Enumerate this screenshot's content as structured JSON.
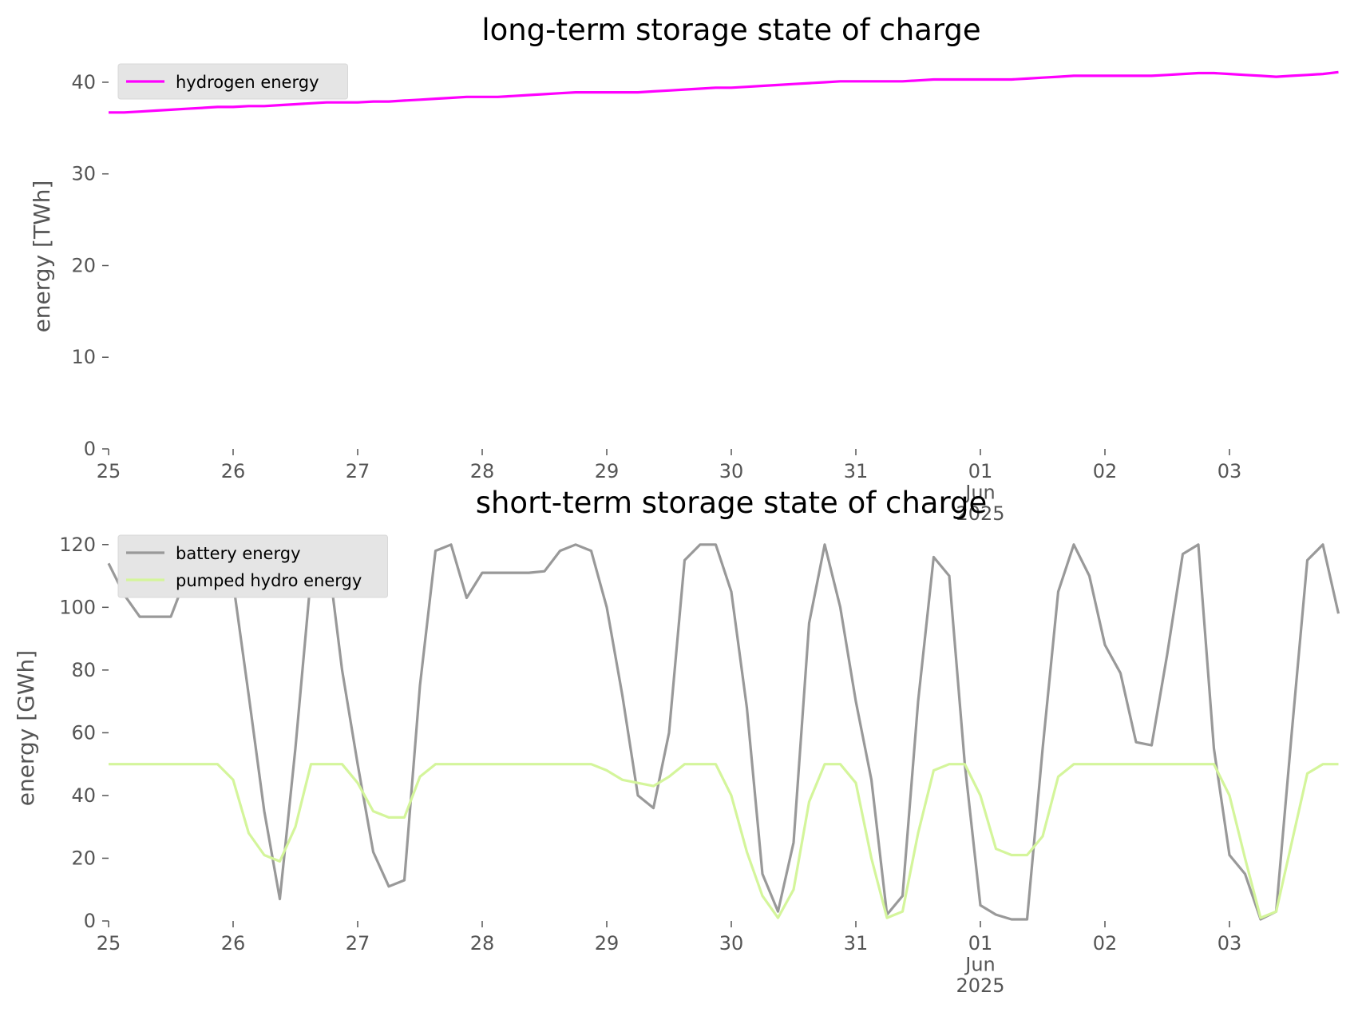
{
  "chart_data": [
    {
      "type": "line",
      "title": "long-term storage state of charge",
      "ylabel": "energy [TWh]",
      "x": [
        "2025-05-25T00:00",
        "2025-05-25T03:00",
        "2025-05-25T06:00",
        "2025-05-25T09:00",
        "2025-05-25T12:00",
        "2025-05-25T15:00",
        "2025-05-25T18:00",
        "2025-05-25T21:00",
        "2025-05-26T00:00",
        "2025-05-26T03:00",
        "2025-05-26T06:00",
        "2025-05-26T09:00",
        "2025-05-26T12:00",
        "2025-05-26T15:00",
        "2025-05-26T18:00",
        "2025-05-26T21:00",
        "2025-05-27T00:00",
        "2025-05-27T03:00",
        "2025-05-27T06:00",
        "2025-05-27T09:00",
        "2025-05-27T12:00",
        "2025-05-27T15:00",
        "2025-05-27T18:00",
        "2025-05-27T21:00",
        "2025-05-28T00:00",
        "2025-05-28T03:00",
        "2025-05-28T06:00",
        "2025-05-28T09:00",
        "2025-05-28T12:00",
        "2025-05-28T15:00",
        "2025-05-28T18:00",
        "2025-05-28T21:00",
        "2025-05-29T00:00",
        "2025-05-29T03:00",
        "2025-05-29T06:00",
        "2025-05-29T09:00",
        "2025-05-29T12:00",
        "2025-05-29T15:00",
        "2025-05-29T18:00",
        "2025-05-29T21:00",
        "2025-05-30T00:00",
        "2025-05-30T03:00",
        "2025-05-30T06:00",
        "2025-05-30T09:00",
        "2025-05-30T12:00",
        "2025-05-30T15:00",
        "2025-05-30T18:00",
        "2025-05-30T21:00",
        "2025-05-31T00:00",
        "2025-05-31T03:00",
        "2025-05-31T06:00",
        "2025-05-31T09:00",
        "2025-05-31T12:00",
        "2025-05-31T15:00",
        "2025-05-31T18:00",
        "2025-05-31T21:00",
        "2025-06-01T00:00",
        "2025-06-01T03:00",
        "2025-06-01T06:00",
        "2025-06-01T09:00",
        "2025-06-01T12:00",
        "2025-06-01T15:00",
        "2025-06-01T18:00",
        "2025-06-01T21:00",
        "2025-06-02T00:00",
        "2025-06-02T03:00",
        "2025-06-02T06:00",
        "2025-06-02T09:00",
        "2025-06-02T12:00",
        "2025-06-02T15:00",
        "2025-06-02T18:00",
        "2025-06-02T21:00",
        "2025-06-03T00:00",
        "2025-06-03T03:00",
        "2025-06-03T06:00",
        "2025-06-03T09:00",
        "2025-06-03T12:00",
        "2025-06-03T15:00",
        "2025-06-03T18:00",
        "2025-06-03T21:00"
      ],
      "series": [
        {
          "name": "hydrogen energy",
          "color": "#ff00ff",
          "values": [
            36.7,
            36.7,
            36.8,
            36.9,
            37.0,
            37.1,
            37.2,
            37.3,
            37.3,
            37.4,
            37.4,
            37.5,
            37.6,
            37.7,
            37.8,
            37.8,
            37.8,
            37.9,
            37.9,
            38.0,
            38.1,
            38.2,
            38.3,
            38.4,
            38.4,
            38.4,
            38.5,
            38.6,
            38.7,
            38.8,
            38.9,
            38.9,
            38.9,
            38.9,
            38.9,
            39.0,
            39.1,
            39.2,
            39.3,
            39.4,
            39.4,
            39.5,
            39.6,
            39.7,
            39.8,
            39.9,
            40.0,
            40.1,
            40.1,
            40.1,
            40.1,
            40.1,
            40.2,
            40.3,
            40.3,
            40.3,
            40.3,
            40.3,
            40.3,
            40.4,
            40.5,
            40.6,
            40.7,
            40.7,
            40.7,
            40.7,
            40.7,
            40.7,
            40.8,
            40.9,
            41.0,
            41.0,
            40.9,
            40.8,
            40.7,
            40.6,
            40.7,
            40.8,
            40.9,
            41.1
          ]
        }
      ],
      "xlim": [
        "2025-05-25",
        "2025-06-04"
      ],
      "xticks": [
        {
          "value": "2025-05-25",
          "label": "25"
        },
        {
          "value": "2025-05-26",
          "label": "26"
        },
        {
          "value": "2025-05-27",
          "label": "27"
        },
        {
          "value": "2025-05-28",
          "label": "28"
        },
        {
          "value": "2025-05-29",
          "label": "29"
        },
        {
          "value": "2025-05-30",
          "label": "30"
        },
        {
          "value": "2025-05-31",
          "label": "31"
        },
        {
          "value": "2025-06-01",
          "label": "01\nJun\n2025"
        },
        {
          "value": "2025-06-02",
          "label": "02"
        },
        {
          "value": "2025-06-03",
          "label": "03"
        }
      ],
      "ylim": [
        0,
        42
      ],
      "yticks": [
        0,
        10,
        20,
        30,
        40
      ],
      "legend": "upper left"
    },
    {
      "type": "line",
      "title": "short-term storage state of charge",
      "ylabel": "energy [GWh]",
      "x": [
        "2025-05-25T00:00",
        "2025-05-25T03:00",
        "2025-05-25T06:00",
        "2025-05-25T09:00",
        "2025-05-25T12:00",
        "2025-05-25T15:00",
        "2025-05-25T18:00",
        "2025-05-25T21:00",
        "2025-05-26T00:00",
        "2025-05-26T03:00",
        "2025-05-26T06:00",
        "2025-05-26T09:00",
        "2025-05-26T12:00",
        "2025-05-26T15:00",
        "2025-05-26T18:00",
        "2025-05-26T21:00",
        "2025-05-27T00:00",
        "2025-05-27T03:00",
        "2025-05-27T06:00",
        "2025-05-27T09:00",
        "2025-05-27T12:00",
        "2025-05-27T15:00",
        "2025-05-27T18:00",
        "2025-05-27T21:00",
        "2025-05-28T00:00",
        "2025-05-28T03:00",
        "2025-05-28T06:00",
        "2025-05-28T09:00",
        "2025-05-28T12:00",
        "2025-05-28T15:00",
        "2025-05-28T18:00",
        "2025-05-28T21:00",
        "2025-05-29T00:00",
        "2025-05-29T03:00",
        "2025-05-29T06:00",
        "2025-05-29T09:00",
        "2025-05-29T12:00",
        "2025-05-29T15:00",
        "2025-05-29T18:00",
        "2025-05-29T21:00",
        "2025-05-30T00:00",
        "2025-05-30T03:00",
        "2025-05-30T06:00",
        "2025-05-30T09:00",
        "2025-05-30T12:00",
        "2025-05-30T15:00",
        "2025-05-30T18:00",
        "2025-05-30T21:00",
        "2025-05-31T00:00",
        "2025-05-31T03:00",
        "2025-05-31T06:00",
        "2025-05-31T09:00",
        "2025-05-31T12:00",
        "2025-05-31T15:00",
        "2025-05-31T18:00",
        "2025-05-31T21:00",
        "2025-06-01T00:00",
        "2025-06-01T03:00",
        "2025-06-01T06:00",
        "2025-06-01T09:00",
        "2025-06-01T12:00",
        "2025-06-01T15:00",
        "2025-06-01T18:00",
        "2025-06-01T21:00",
        "2025-06-02T00:00",
        "2025-06-02T03:00",
        "2025-06-02T06:00",
        "2025-06-02T09:00",
        "2025-06-02T12:00",
        "2025-06-02T15:00",
        "2025-06-02T18:00",
        "2025-06-02T21:00",
        "2025-06-03T00:00",
        "2025-06-03T03:00",
        "2025-06-03T06:00",
        "2025-06-03T09:00",
        "2025-06-03T12:00",
        "2025-06-03T15:00",
        "2025-06-03T18:00",
        "2025-06-03T21:00"
      ],
      "series": [
        {
          "name": "battery energy",
          "color": "#999999",
          "values": [
            114,
            104,
            97,
            97,
            97,
            110,
            120,
            120,
            108,
            72,
            35,
            7,
            55,
            110,
            120,
            80,
            50,
            22,
            11,
            13,
            75,
            118,
            120,
            103,
            111,
            111,
            111,
            111,
            111.5,
            118,
            120,
            118,
            100,
            72,
            40,
            36,
            60,
            115,
            120,
            120,
            105,
            68,
            15,
            3,
            25,
            95,
            120,
            100,
            70,
            45,
            2,
            8,
            70,
            116,
            110,
            50,
            5,
            2,
            0.5,
            0.5,
            55,
            105,
            120,
            110,
            88,
            79,
            57,
            56,
            85,
            117,
            120,
            55,
            21,
            15,
            0.5,
            3,
            60,
            115,
            120,
            98
          ]
        },
        {
          "name": "pumped hydro energy",
          "color": "#d4f59b",
          "values": [
            50,
            50,
            50,
            50,
            50,
            50,
            50,
            50,
            45,
            28,
            21,
            19,
            30,
            50,
            50,
            50,
            44,
            35,
            33,
            33,
            46,
            50,
            50,
            50,
            50,
            50,
            50,
            50,
            50,
            50,
            50,
            50,
            48,
            45,
            44,
            43,
            46,
            50,
            50,
            50,
            40,
            22,
            8,
            1,
            10,
            38,
            50,
            50,
            44,
            20,
            1,
            3,
            28,
            48,
            50,
            50,
            40,
            23,
            21,
            21,
            27,
            46,
            50,
            50,
            50,
            50,
            50,
            50,
            50,
            50,
            50,
            50,
            40,
            20,
            1,
            3,
            25,
            47,
            50,
            50
          ]
        }
      ],
      "xlim": [
        "2025-05-25",
        "2025-06-04"
      ],
      "xticks": [
        {
          "value": "2025-05-25",
          "label": "25"
        },
        {
          "value": "2025-05-26",
          "label": "26"
        },
        {
          "value": "2025-05-27",
          "label": "27"
        },
        {
          "value": "2025-05-28",
          "label": "28"
        },
        {
          "value": "2025-05-29",
          "label": "29"
        },
        {
          "value": "2025-05-30",
          "label": "30"
        },
        {
          "value": "2025-05-31",
          "label": "31"
        },
        {
          "value": "2025-06-01",
          "label": "01\nJun\n2025"
        },
        {
          "value": "2025-06-02",
          "label": "02"
        },
        {
          "value": "2025-06-03",
          "label": "03"
        }
      ],
      "ylim": [
        0,
        123
      ],
      "yticks": [
        0,
        20,
        40,
        60,
        80,
        100,
        120
      ],
      "legend": "upper left"
    }
  ]
}
